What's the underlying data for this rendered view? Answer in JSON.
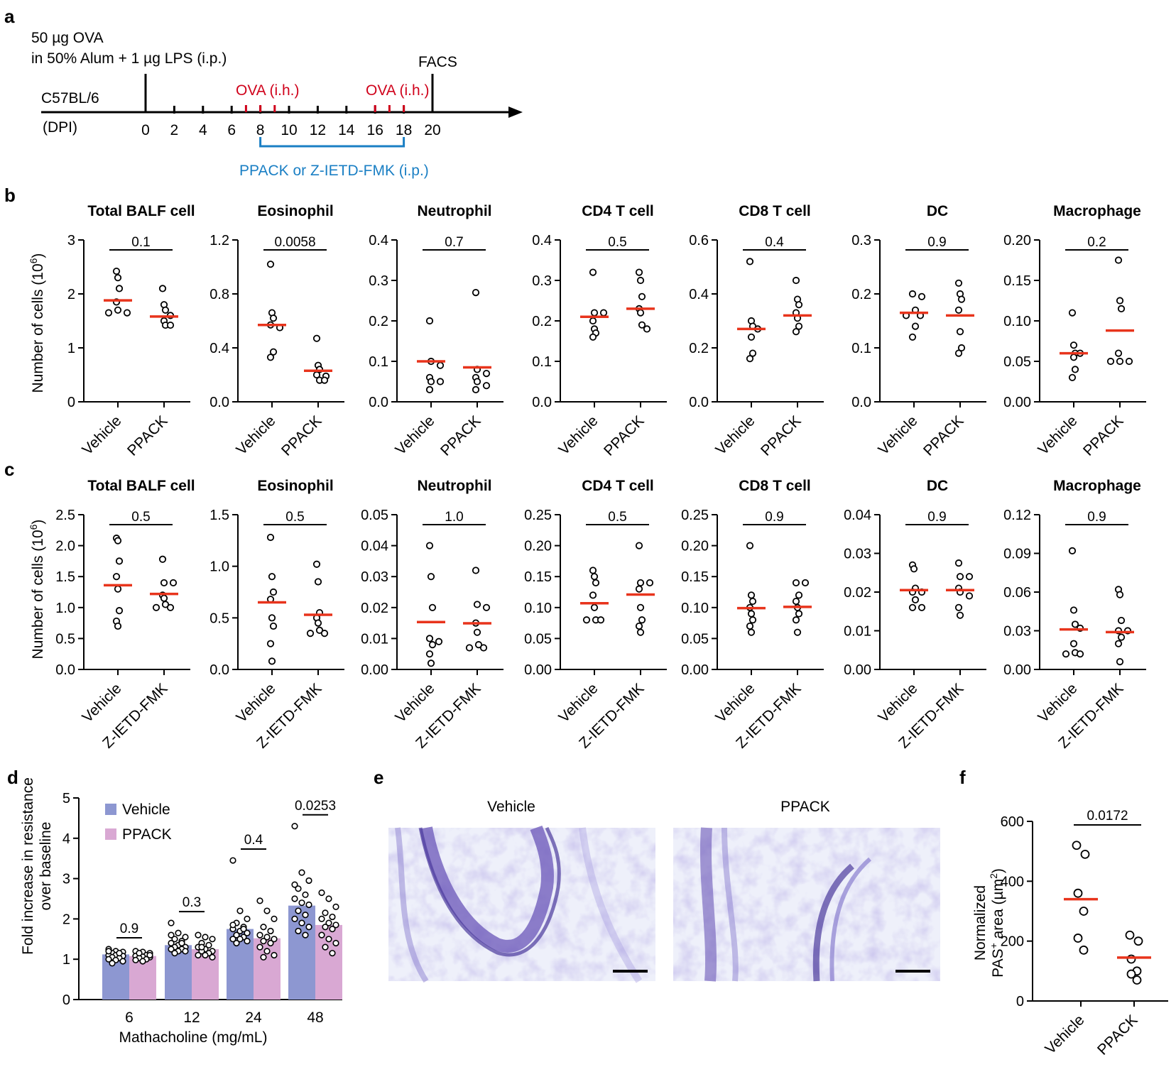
{
  "panel_letters": [
    "a",
    "b",
    "c",
    "d",
    "e",
    "f"
  ],
  "timeline": {
    "prime_line1": "50 µg OVA",
    "prime_line2": "in 50% Alum + 1 µg LPS (i.p.)",
    "strain": "C57BL/6",
    "axis_label": "(DPI)",
    "ticks": [
      "0",
      "2",
      "4",
      "6",
      "8",
      "10",
      "12",
      "14",
      "16",
      "18",
      "20"
    ],
    "challenge_label_1": "OVA (i.h.)",
    "challenge_label_2": "OVA (i.h.)",
    "end_label": "FACS",
    "treatment_label": "PPACK or Z-IETD-FMK (i.p.)",
    "red_color": "#d0021b",
    "blue_color": "#1a7fc4"
  },
  "ylabel_cells": "Number of cells (10",
  "ylabel_cells_exp": "6",
  "ylabel_cells_close": ")",
  "colors": {
    "mean_line": "#e8341c",
    "vehicle_bar": "#8d97d1",
    "ppack_bar": "#d9a8d3",
    "stain": "#7b6fc2"
  },
  "chart_data": [
    {
      "id": "b",
      "type": "scatter",
      "groups": [
        "Vehicle",
        "PPACK"
      ],
      "subplots": [
        {
          "title": "Total BALF cell",
          "ylim": [
            0,
            3
          ],
          "yticks": [
            "0",
            "1",
            "2",
            "3"
          ],
          "p": "0.1",
          "points": [
            [
              2.42,
              2.3,
              2.1,
              1.85,
              1.7,
              1.65,
              1.65
            ],
            [
              2.1,
              1.8,
              1.7,
              1.6,
              1.5,
              1.42,
              1.42
            ]
          ],
          "means": [
            1.88,
            1.58
          ]
        },
        {
          "title": "Eosinophil",
          "ylim": [
            0,
            1.2
          ],
          "yticks": [
            "0.0",
            "0.4",
            "0.8",
            "1.2"
          ],
          "p": "0.0058",
          "points": [
            [
              1.02,
              0.66,
              0.62,
              0.57,
              0.55,
              0.37,
              0.33
            ],
            [
              0.47,
              0.27,
              0.24,
              0.2,
              0.19,
              0.16,
              0.16
            ]
          ],
          "means": [
            0.57,
            0.23
          ]
        },
        {
          "title": "Neutrophil",
          "ylim": [
            0,
            0.4
          ],
          "yticks": [
            "0.0",
            "0.1",
            "0.2",
            "0.3",
            "0.4"
          ],
          "p": "0.7",
          "points": [
            [
              0.2,
              0.1,
              0.09,
              0.06,
              0.05,
              0.05,
              0.03
            ],
            [
              0.27,
              0.08,
              0.07,
              0.06,
              0.05,
              0.04,
              0.03
            ]
          ],
          "means": [
            0.1,
            0.085
          ]
        },
        {
          "title": "CD4 T cell",
          "ylim": [
            0,
            0.4
          ],
          "yticks": [
            "0.0",
            "0.1",
            "0.2",
            "0.3",
            "0.4"
          ],
          "p": "0.5",
          "points": [
            [
              0.32,
              0.22,
              0.22,
              0.2,
              0.18,
              0.17,
              0.16
            ],
            [
              0.32,
              0.3,
              0.26,
              0.23,
              0.22,
              0.19,
              0.18
            ]
          ],
          "means": [
            0.21,
            0.23
          ]
        },
        {
          "title": "CD8 T cell",
          "ylim": [
            0,
            0.6
          ],
          "yticks": [
            "0.0",
            "0.2",
            "0.4",
            "0.6"
          ],
          "p": "0.4",
          "points": [
            [
              0.52,
              0.3,
              0.28,
              0.27,
              0.24,
              0.18,
              0.16
            ],
            [
              0.45,
              0.38,
              0.36,
              0.33,
              0.31,
              0.28,
              0.26
            ]
          ],
          "means": [
            0.27,
            0.32
          ]
        },
        {
          "title": "DC",
          "ylim": [
            0,
            0.3
          ],
          "yticks": [
            "0.0",
            "0.1",
            "0.2",
            "0.3"
          ],
          "p": "0.9",
          "points": [
            [
              0.2,
              0.195,
              0.17,
              0.16,
              0.16,
              0.14,
              0.12
            ],
            [
              0.22,
              0.2,
              0.19,
              0.17,
              0.13,
              0.1,
              0.09
            ]
          ],
          "means": [
            0.165,
            0.16
          ]
        },
        {
          "title": "Macrophage",
          "ylim": [
            0,
            0.2
          ],
          "yticks": [
            "0.00",
            "0.05",
            "0.10",
            "0.15",
            "0.20"
          ],
          "p": "0.2",
          "points": [
            [
              0.11,
              0.07,
              0.06,
              0.06,
              0.055,
              0.04,
              0.03
            ],
            [
              0.175,
              0.125,
              0.115,
              0.06,
              0.05,
              0.05,
              0.05
            ]
          ],
          "means": [
            0.06,
            0.088
          ]
        }
      ]
    },
    {
      "id": "c",
      "type": "scatter",
      "groups": [
        "Vehicle",
        "Z-IETD-FMK"
      ],
      "subplots": [
        {
          "title": "Total BALF cell",
          "ylim": [
            0,
            2.5
          ],
          "yticks": [
            "0.0",
            "0.5",
            "1.0",
            "1.5",
            "2.0",
            "2.5"
          ],
          "p": "0.5",
          "points": [
            [
              2.12,
              2.08,
              1.75,
              1.5,
              1.3,
              0.95,
              0.78,
              0.7
            ],
            [
              1.78,
              1.4,
              1.4,
              1.2,
              1.15,
              1.05,
              1.0,
              1.0
            ]
          ],
          "means": [
            1.36,
            1.22
          ]
        },
        {
          "title": "Eosinophil",
          "ylim": [
            0,
            1.5
          ],
          "yticks": [
            "0.0",
            "0.5",
            "1.0",
            "1.5"
          ],
          "p": "0.5",
          "points": [
            [
              1.28,
              0.9,
              0.75,
              0.68,
              0.5,
              0.42,
              0.25,
              0.08
            ],
            [
              1.02,
              0.85,
              0.55,
              0.5,
              0.45,
              0.38,
              0.35,
              0.35
            ]
          ],
          "means": [
            0.65,
            0.53
          ]
        },
        {
          "title": "Neutrophil",
          "ylim": [
            0,
            0.05
          ],
          "yticks": [
            "0.00",
            "0.01",
            "0.02",
            "0.03",
            "0.04",
            "0.05"
          ],
          "p": "1.0",
          "points": [
            [
              0.04,
              0.03,
              0.02,
              0.01,
              0.009,
              0.008,
              0.005,
              0.002
            ],
            [
              0.032,
              0.021,
              0.02,
              0.015,
              0.012,
              0.008,
              0.007,
              0.007
            ]
          ],
          "means": [
            0.0153,
            0.0149
          ]
        },
        {
          "title": "CD4 T cell",
          "ylim": [
            0,
            0.25
          ],
          "yticks": [
            "0.00",
            "0.05",
            "0.10",
            "0.15",
            "0.20",
            "0.25"
          ],
          "p": "0.5",
          "points": [
            [
              0.16,
              0.15,
              0.14,
              0.12,
              0.1,
              0.08,
              0.08,
              0.08
            ],
            [
              0.2,
              0.14,
              0.14,
              0.13,
              0.1,
              0.08,
              0.07,
              0.06
            ]
          ],
          "means": [
            0.107,
            0.121
          ]
        },
        {
          "title": "CD8 T cell",
          "ylim": [
            0,
            0.25
          ],
          "yticks": [
            "0.00",
            "0.05",
            "0.10",
            "0.15",
            "0.20",
            "0.25"
          ],
          "p": "0.9",
          "points": [
            [
              0.2,
              0.12,
              0.11,
              0.1,
              0.09,
              0.08,
              0.07,
              0.06
            ],
            [
              0.14,
              0.14,
              0.12,
              0.11,
              0.1,
              0.09,
              0.08,
              0.06
            ]
          ],
          "means": [
            0.099,
            0.101
          ]
        },
        {
          "title": "DC",
          "ylim": [
            0,
            0.04
          ],
          "yticks": [
            "0.00",
            "0.01",
            "0.02",
            "0.03",
            "0.04"
          ],
          "p": "0.9",
          "points": [
            [
              0.027,
              0.026,
              0.021,
              0.02,
              0.02,
              0.018,
              0.016,
              0.016
            ],
            [
              0.0275,
              0.024,
              0.024,
              0.021,
              0.02,
              0.019,
              0.016,
              0.014
            ]
          ],
          "means": [
            0.0205,
            0.0205
          ]
        },
        {
          "title": "Macrophage",
          "ylim": [
            0,
            0.12
          ],
          "yticks": [
            "0.00",
            "0.03",
            "0.06",
            "0.09",
            "0.12"
          ],
          "p": "0.9",
          "points": [
            [
              0.092,
              0.046,
              0.035,
              0.032,
              0.02,
              0.013,
              0.012,
              0.012
            ],
            [
              0.062,
              0.058,
              0.038,
              0.03,
              0.03,
              0.025,
              0.02,
              0.006
            ]
          ],
          "means": [
            0.031,
            0.029
          ]
        }
      ]
    },
    {
      "id": "d",
      "type": "bar",
      "categories": [
        "6",
        "12",
        "24",
        "48"
      ],
      "xlabel": "Mathacholine (mg/mL)",
      "ylabel_line1": "Fold increase in resistance",
      "ylabel_line2": "over baseline",
      "ylim": [
        0,
        5
      ],
      "yticks": [
        "0",
        "1",
        "2",
        "3",
        "4",
        "5"
      ],
      "legend": [
        "Vehicle",
        "PPACK"
      ],
      "p_values": [
        "0.9",
        "0.3",
        "0.4",
        "0.0253"
      ],
      "series": [
        {
          "name": "Vehicle",
          "values": [
            1.12,
            1.35,
            1.75,
            2.33
          ],
          "points": [
            [
              1.25,
              1.2,
              1.18,
              1.15,
              1.12,
              1.1,
              1.1,
              1.08,
              1.05,
              1.03,
              1.0,
              0.98,
              0.95,
              0.9,
              1.15,
              1.2
            ],
            [
              1.9,
              1.65,
              1.55,
              1.5,
              1.45,
              1.4,
              1.35,
              1.3,
              1.3,
              1.25,
              1.25,
              1.2,
              1.2,
              1.15,
              1.4,
              1.6
            ],
            [
              3.45,
              2.2,
              2.0,
              1.9,
              1.8,
              1.75,
              1.7,
              1.65,
              1.6,
              1.55,
              1.5,
              1.5,
              1.45,
              1.4,
              1.75,
              1.85
            ],
            [
              4.3,
              3.15,
              2.95,
              2.75,
              2.6,
              2.5,
              2.4,
              2.35,
              2.2,
              2.1,
              2.0,
              1.9,
              1.8,
              1.7,
              1.6,
              2.85
            ]
          ]
        },
        {
          "name": "PPACK",
          "values": [
            1.08,
            1.25,
            1.52,
            1.85
          ],
          "points": [
            [
              1.2,
              1.18,
              1.15,
              1.12,
              1.1,
              1.08,
              1.06,
              1.05,
              1.03,
              1.0,
              0.98,
              0.95,
              1.1,
              1.15
            ],
            [
              1.6,
              1.55,
              1.5,
              1.4,
              1.35,
              1.3,
              1.25,
              1.2,
              1.2,
              1.15,
              1.1,
              1.1,
              1.05,
              1.3
            ],
            [
              2.45,
              2.2,
              2.0,
              1.8,
              1.7,
              1.6,
              1.55,
              1.5,
              1.45,
              1.4,
              1.3,
              1.2,
              1.1,
              1.05
            ],
            [
              2.65,
              2.5,
              2.3,
              2.15,
              2.05,
              2.0,
              1.9,
              1.85,
              1.8,
              1.75,
              1.6,
              1.5,
              1.4,
              1.3,
              1.15
            ]
          ]
        }
      ]
    },
    {
      "id": "f",
      "type": "scatter",
      "groups": [
        "Vehicle",
        "PPACK"
      ],
      "ylabel_line1": "Normalized",
      "ylabel_line2": "PAS",
      "ylabel_sup": "+",
      "ylabel_rest": " area (µm",
      "ylabel_exp": "2",
      "ylabel_close": ")",
      "ylim": [
        0,
        600
      ],
      "yticks": [
        "0",
        "200",
        "400",
        "600"
      ],
      "p": "0.0172",
      "points": [
        [
          520,
          490,
          360,
          300,
          210,
          170
        ],
        [
          220,
          200,
          140,
          100,
          90,
          70
        ]
      ],
      "means": [
        340,
        145
      ]
    }
  ],
  "histology": {
    "left_label": "Vehicle",
    "right_label": "PPACK"
  }
}
